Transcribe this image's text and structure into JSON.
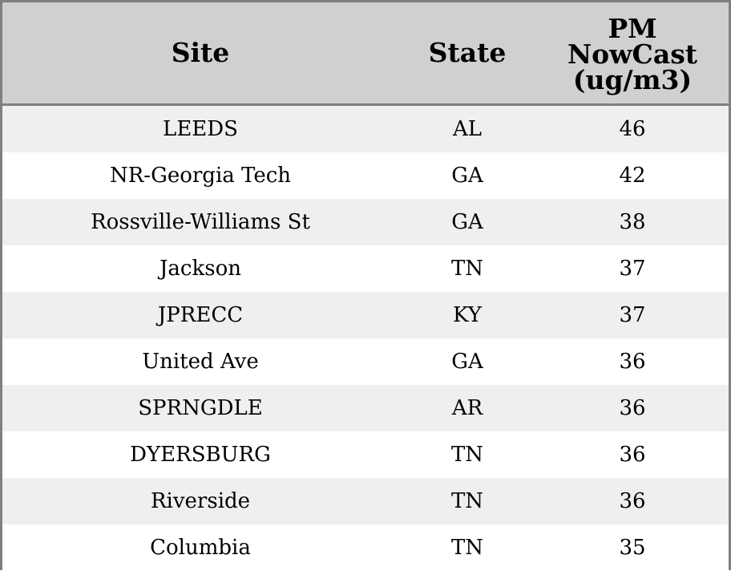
{
  "table": {
    "headers": {
      "site": "Site",
      "state": "State",
      "pm": "PM\nNowCast\n(ug/m3)"
    },
    "rows": [
      {
        "site": "LEEDS",
        "state": "AL",
        "pm": "46"
      },
      {
        "site": "NR-Georgia Tech",
        "state": "GA",
        "pm": "42"
      },
      {
        "site": "Rossville-Williams St",
        "state": "GA",
        "pm": "38"
      },
      {
        "site": "Jackson",
        "state": "TN",
        "pm": "37"
      },
      {
        "site": "JPRECC",
        "state": "KY",
        "pm": "37"
      },
      {
        "site": "United Ave",
        "state": "GA",
        "pm": "36"
      },
      {
        "site": "SPRNGDLE",
        "state": "AR",
        "pm": "36"
      },
      {
        "site": "DYERSBURG",
        "state": "TN",
        "pm": "36"
      },
      {
        "site": "Riverside",
        "state": "TN",
        "pm": "36"
      },
      {
        "site": "Columbia",
        "state": "TN",
        "pm": "35"
      }
    ]
  },
  "colors": {
    "header_bg": "#d0d0d0",
    "row_alt_bg": "#efefef",
    "row_bg": "#ffffff",
    "border": "#808080"
  }
}
